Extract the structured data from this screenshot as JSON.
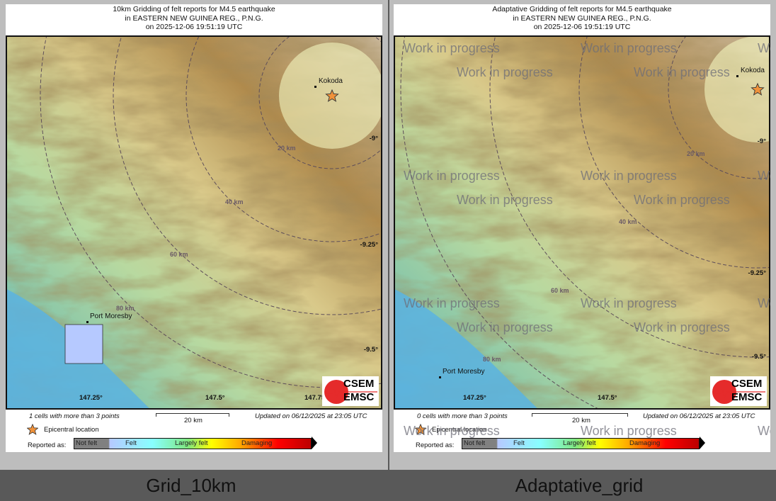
{
  "panels": [
    {
      "caption": "Grid_10km",
      "title_lines": [
        "10km Gridding of felt reports for M4.5 earthquake",
        "in EASTERN NEW GUINEA REG., P.N.G.",
        "on  2025-12-06 19:51:19 UTC"
      ],
      "cities": {
        "kokoda": "Kokoda",
        "port_moresby": "Port Moresby"
      },
      "lon_ticks": [
        "147.25°",
        "147.5°",
        "147.75°"
      ],
      "lat_ticks": [
        "-9°",
        "-9.25°",
        "-9.5°"
      ],
      "rings": [
        "20 km",
        "40 km",
        "60 km",
        "80 km"
      ],
      "cells_note": "1 cells with more than 3 points",
      "scale_label": "20 km",
      "updated": "Updated on 06/12/2025 at 23:05 UTC",
      "epicenter_label": "Epicentral location",
      "reported_as": "Reported as:",
      "scale_classes": [
        "Not felt",
        "Felt",
        "Largely felt",
        "Damaging"
      ]
    },
    {
      "caption": "Adaptative_grid",
      "title_lines": [
        "Adaptative Gridding of felt reports for M4.5 earthquake",
        "in EASTERN NEW GUINEA REG., P.N.G.",
        "on  2025-12-06 19:51:19 UTC"
      ],
      "cities": {
        "kokoda": "Kokoda",
        "port_moresby": "Port Moresby"
      },
      "lon_ticks": [
        "147.25°",
        "147.5°"
      ],
      "lat_ticks": [
        "-9°",
        "-9.25°",
        "-9.5°"
      ],
      "rings": [
        "20 km",
        "40 km",
        "60 km",
        "80 km"
      ],
      "cells_note": "0 cells with more than 3 points",
      "scale_label": "20 km",
      "updated": "Updated on 06/12/2025 at 23:05 UTC",
      "epicenter_label": "Epicentral location",
      "reported_as": "Reported as:",
      "scale_classes": [
        "Not felt",
        "Felt",
        "Largely felt",
        "Damaging"
      ],
      "watermark": "Work in progress"
    }
  ],
  "logo": {
    "line1": "CSEM",
    "line2": "EMSC"
  },
  "colors": {
    "epicenter": "#f0923a",
    "felt_cell": "#b6c9ff",
    "ring": "#5e4e5a"
  }
}
